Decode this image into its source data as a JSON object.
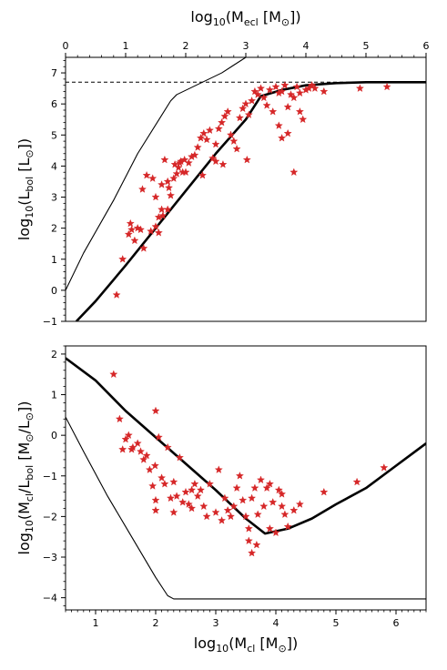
{
  "chart_data": [
    {
      "type": "scatter",
      "panel": "top",
      "xlabel_main": "log",
      "xlabel_sub": "10",
      "xlabel_rest": "(M",
      "xlabel_msub": "ecl",
      "xlabel_units": " [M",
      "xlabel_sun": "⊙",
      "xlabel_end": "])",
      "ylabel_main": "log",
      "ylabel_sub": "10",
      "ylabel_rest": "(L",
      "ylabel_lsub": "bol",
      "ylabel_units": " [L",
      "ylabel_sun": "⊙",
      "ylabel_end": "])",
      "xlim": [
        0,
        6
      ],
      "ylim": [
        -1,
        7.5
      ],
      "xticks": [
        0,
        1,
        2,
        3,
        4,
        5,
        6
      ],
      "yticks": [
        -1,
        0,
        1,
        2,
        3,
        4,
        5,
        6,
        7
      ],
      "x_axis_position": "top",
      "grid": false,
      "hline": 6.7,
      "series": [
        {
          "style": "thick-line",
          "x": [
            0.18,
            0.5,
            1.0,
            1.5,
            2.0,
            2.5,
            3.0,
            3.25,
            3.6,
            4.0,
            4.5,
            5.0,
            6.0
          ],
          "y": [
            -1.0,
            -0.35,
            0.8,
            2.0,
            3.2,
            4.4,
            5.5,
            6.25,
            6.45,
            6.6,
            6.67,
            6.7,
            6.7
          ]
        },
        {
          "style": "thin-line",
          "x": [
            0.0,
            0.3,
            0.8,
            1.2,
            1.75,
            1.85,
            2.6,
            3.0
          ],
          "y": [
            0.0,
            1.2,
            2.9,
            4.4,
            6.1,
            6.3,
            7.0,
            7.5
          ]
        },
        {
          "style": "stars",
          "x": [
            0.85,
            0.95,
            1.05,
            1.1,
            1.15,
            1.2,
            1.25,
            1.28,
            1.3,
            1.35,
            1.45,
            1.5,
            1.5,
            1.55,
            1.6,
            1.6,
            1.62,
            1.65,
            1.7,
            1.72,
            1.75,
            1.8,
            1.82,
            1.85,
            1.88,
            1.9,
            1.92,
            1.95,
            1.98,
            2.0,
            2.05,
            2.1,
            2.15,
            2.2,
            2.25,
            2.3,
            2.35,
            2.4,
            2.45,
            2.5,
            2.55,
            2.6,
            2.65,
            2.7,
            2.75,
            2.8,
            2.85,
            2.9,
            2.95,
            3.0,
            3.05,
            3.1,
            3.15,
            3.2,
            3.25,
            3.3,
            3.35,
            3.4,
            3.45,
            3.5,
            3.55,
            3.6,
            3.65,
            3.7,
            3.75,
            3.8,
            3.85,
            3.9,
            3.95,
            4.0,
            4.05,
            4.1,
            4.15,
            4.3,
            4.9,
            5.35,
            1.08,
            1.42,
            1.55,
            1.7,
            2.28,
            2.5,
            2.62,
            3.02,
            3.55,
            3.6,
            3.7,
            3.8,
            3.9
          ],
          "y": [
            -0.15,
            1.0,
            1.8,
            1.95,
            1.6,
            2.0,
            1.95,
            3.25,
            1.35,
            3.7,
            3.6,
            3.0,
            2.05,
            2.35,
            3.4,
            2.6,
            2.4,
            4.2,
            3.5,
            3.3,
            3.05,
            3.6,
            4.05,
            3.75,
            3.95,
            4.1,
            4.15,
            3.8,
            4.2,
            3.8,
            4.1,
            4.3,
            4.35,
            4.6,
            4.9,
            5.05,
            4.85,
            5.15,
            4.25,
            4.7,
            5.2,
            5.4,
            5.6,
            5.75,
            5.0,
            4.8,
            4.55,
            5.55,
            5.85,
            6.0,
            5.65,
            6.1,
            6.4,
            6.3,
            6.5,
            6.2,
            5.95,
            6.45,
            5.75,
            6.55,
            6.35,
            6.4,
            6.6,
            5.9,
            6.3,
            6.2,
            6.55,
            6.35,
            5.5,
            6.45,
            6.5,
            6.6,
            6.5,
            6.4,
            6.5,
            6.55,
            2.15,
            1.9,
            1.85,
            2.6,
            3.7,
            4.15,
            4.05,
            4.2,
            5.3,
            4.9,
            5.05,
            3.8,
            5.75
          ]
        }
      ]
    },
    {
      "type": "scatter",
      "panel": "bottom",
      "xlabel_main": "log",
      "xlabel_sub": "10",
      "xlabel_rest": "(M",
      "xlabel_msub": "cl",
      "xlabel_units": " [M",
      "xlabel_sun": "⊙",
      "xlabel_end": "])",
      "ylabel_main": "log",
      "ylabel_sub": "10",
      "ylabel_rest": "(M",
      "ylabel_msub": "cl",
      "ylabel_slash": "/L",
      "ylabel_lsub": "bol",
      "ylabel_units": " [M",
      "ylabel_sun1": "⊙",
      "ylabel_mid": "/L",
      "ylabel_sun2": "⊙",
      "ylabel_end": "])",
      "xlim": [
        0.5,
        6.5
      ],
      "ylim": [
        -4.3,
        2.2
      ],
      "xticks": [
        1,
        2,
        3,
        4,
        5,
        6
      ],
      "yticks": [
        -4,
        -3,
        -2,
        -1,
        0,
        1,
        2
      ],
      "x_axis_position": "bottom",
      "grid": false,
      "series": [
        {
          "style": "thick-line",
          "x": [
            0.5,
            1.0,
            1.5,
            2.0,
            2.5,
            3.0,
            3.5,
            3.82,
            4.2,
            4.6,
            5.0,
            5.5,
            6.0,
            6.5
          ],
          "y": [
            1.9,
            1.35,
            0.6,
            -0.05,
            -0.7,
            -1.35,
            -2.05,
            -2.42,
            -2.3,
            -2.05,
            -1.7,
            -1.3,
            -0.75,
            -0.2
          ]
        },
        {
          "style": "thin-line",
          "x": [
            0.5,
            0.8,
            1.2,
            1.6,
            2.0,
            2.2,
            2.3,
            3.0,
            6.5
          ],
          "y": [
            0.45,
            -0.4,
            -1.5,
            -2.5,
            -3.5,
            -3.95,
            -4.03,
            -4.03,
            -4.03
          ]
        },
        {
          "style": "stars",
          "x": [
            1.3,
            1.4,
            1.45,
            1.5,
            1.55,
            1.6,
            1.62,
            1.7,
            1.75,
            1.8,
            1.85,
            1.9,
            1.95,
            2.0,
            2.0,
            2.05,
            2.1,
            2.15,
            2.2,
            2.25,
            2.3,
            2.35,
            2.4,
            2.45,
            2.5,
            2.55,
            2.6,
            2.65,
            2.7,
            2.75,
            2.8,
            2.85,
            2.9,
            3.0,
            3.05,
            3.1,
            3.15,
            3.2,
            3.25,
            3.3,
            3.35,
            3.4,
            3.45,
            3.5,
            3.55,
            3.6,
            3.65,
            3.7,
            3.75,
            3.8,
            3.85,
            3.9,
            3.95,
            4.0,
            4.05,
            4.1,
            4.15,
            4.2,
            4.3,
            4.4,
            4.8,
            5.35,
            5.8,
            1.99,
            2.0,
            2.3,
            2.6,
            3.55,
            3.6,
            3.68,
            3.9,
            4.1
          ],
          "y": [
            1.5,
            0.4,
            -0.35,
            -0.1,
            0.0,
            -0.35,
            -0.3,
            -0.2,
            -0.4,
            -0.6,
            -0.5,
            -0.85,
            -1.25,
            -1.6,
            0.6,
            -0.05,
            -1.05,
            -1.2,
            -0.3,
            -1.55,
            -1.9,
            -1.5,
            -0.55,
            -1.65,
            -1.4,
            -1.7,
            -1.8,
            -1.2,
            -1.5,
            -1.35,
            -1.75,
            -2.0,
            -1.2,
            -1.9,
            -0.85,
            -2.1,
            -1.55,
            -1.85,
            -2.0,
            -1.75,
            -1.3,
            -1.0,
            -1.6,
            -2.0,
            -2.3,
            -1.55,
            -1.3,
            -1.95,
            -1.1,
            -1.75,
            -1.3,
            -1.2,
            -1.65,
            -2.4,
            -1.35,
            -1.75,
            -1.95,
            -2.25,
            -1.85,
            -1.7,
            -1.4,
            -1.15,
            -0.8,
            -0.75,
            -1.85,
            -1.15,
            -1.35,
            -2.6,
            -2.9,
            -2.7,
            -2.3,
            -1.45
          ]
        }
      ]
    }
  ]
}
